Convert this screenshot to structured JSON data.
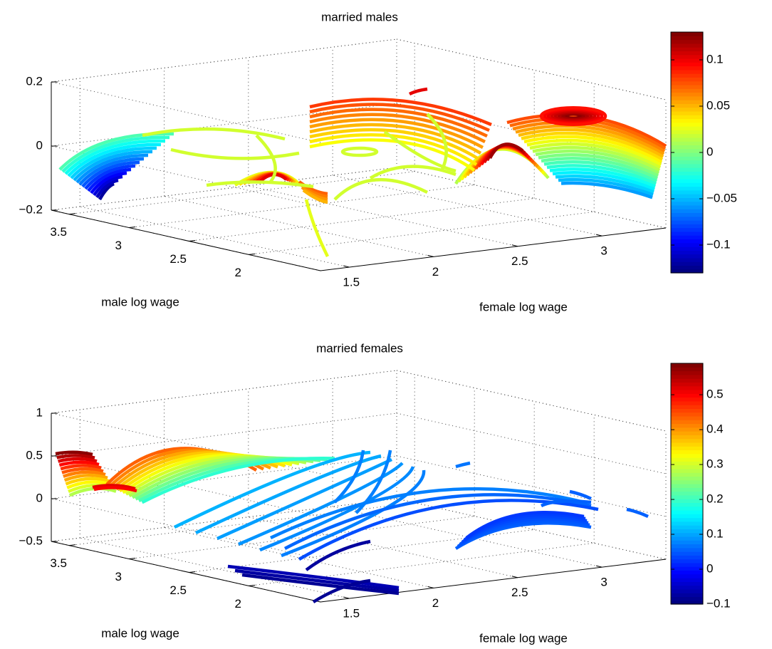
{
  "chart_data": [
    {
      "type": "contour3",
      "title": "married males",
      "xlabel": "male log wage",
      "ylabel": "female log wage",
      "xlim": [
        1.4,
        3.65
      ],
      "xticks": [
        2,
        2.5,
        3,
        3.5
      ],
      "ylim": [
        1.33,
        3.38
      ],
      "yticks": [
        1.5,
        2,
        2.5,
        3
      ],
      "zlim": [
        -0.2,
        0.2
      ],
      "zticks": [
        {
          "value": -0.2,
          "label": "−0.2"
        },
        0,
        0.2
      ],
      "clim": [
        -0.13,
        0.13
      ],
      "cticks": [
        {
          "value": -0.1,
          "label": "−0.1"
        },
        {
          "value": -0.05,
          "label": "−0.05"
        },
        0,
        0.05,
        0.1
      ],
      "colormap": "jet",
      "grid": true
    },
    {
      "type": "contour3",
      "title": "married females",
      "xlabel": "male log wage",
      "ylabel": "female log wage",
      "xlim": [
        1.4,
        3.65
      ],
      "xticks": [
        2,
        2.5,
        3,
        3.5
      ],
      "ylim": [
        1.33,
        3.38
      ],
      "yticks": [
        1.5,
        2,
        2.5,
        3
      ],
      "zlim": [
        -0.5,
        1
      ],
      "zticks": [
        {
          "value": -0.5,
          "label": "−0.5"
        },
        0,
        0.5,
        1
      ],
      "clim": [
        -0.1,
        0.59
      ],
      "cticks": [
        {
          "value": -0.1,
          "label": "−0.1"
        },
        0,
        0.1,
        0.2,
        0.3,
        0.4,
        0.5
      ],
      "colormap": "jet",
      "grid": true
    }
  ]
}
